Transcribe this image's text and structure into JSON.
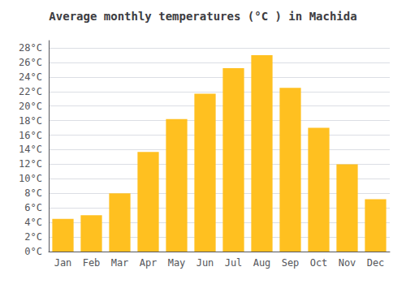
{
  "chart_data": {
    "type": "bar",
    "title": "Average monthly temperatures (°C ) in Machida",
    "categories": [
      "Jan",
      "Feb",
      "Mar",
      "Apr",
      "May",
      "Jun",
      "Jul",
      "Aug",
      "Sep",
      "Oct",
      "Nov",
      "Dec"
    ],
    "values": [
      4.5,
      5.0,
      8.0,
      13.7,
      18.2,
      21.7,
      25.2,
      27.0,
      22.5,
      17.0,
      12.0,
      7.2
    ],
    "color": "#FFC020",
    "ylim": [
      0,
      29
    ],
    "yticks": [
      {
        "value": 0,
        "label": "0°C"
      },
      {
        "value": 2,
        "label": "2°C"
      },
      {
        "value": 4,
        "label": "4°C"
      },
      {
        "value": 6,
        "label": "6°C"
      },
      {
        "value": 8,
        "label": "8°C"
      },
      {
        "value": 10,
        "label": "10°C"
      },
      {
        "value": 12,
        "label": "12°C"
      },
      {
        "value": 14,
        "label": "14°C"
      },
      {
        "value": 16,
        "label": "16°C"
      },
      {
        "value": 18,
        "label": "18°C"
      },
      {
        "value": 20,
        "label": "20°C"
      },
      {
        "value": 22,
        "label": "22°C"
      },
      {
        "value": 24,
        "label": "24°C"
      },
      {
        "value": 26,
        "label": "26°C"
      },
      {
        "value": 28,
        "label": "28°C"
      }
    ],
    "grid": true
  }
}
